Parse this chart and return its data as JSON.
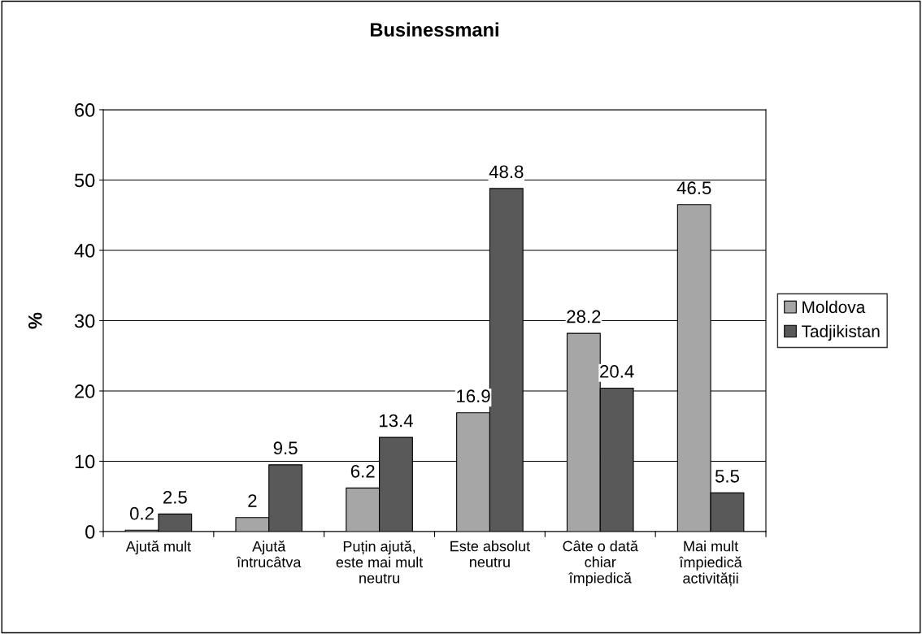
{
  "chart_data": {
    "type": "bar",
    "title": "Businessmani",
    "ylabel": "%",
    "categories": [
      "Ajută mult",
      "Ajută\nîntrucâtva",
      "Puțin ajută,\neste mai mult\nneutru",
      "Este absolut\nneutru",
      "Câte o dată\nchiar\nîmpiedică",
      "Mai mult\nîmpiedică\nactivității"
    ],
    "series": [
      {
        "name": "Moldova",
        "color": "#a6a6a6",
        "values": [
          0.2,
          2,
          6.2,
          16.9,
          28.2,
          46.5
        ]
      },
      {
        "name": "Tadjikistan",
        "color": "#595959",
        "values": [
          2.5,
          9.5,
          13.4,
          48.8,
          20.4,
          5.5
        ]
      }
    ],
    "ylim": [
      0,
      60
    ],
    "yticks": [
      0,
      10,
      20,
      30,
      40,
      50,
      60
    ],
    "grid": "y",
    "legend": "right",
    "data_labels": true
  }
}
